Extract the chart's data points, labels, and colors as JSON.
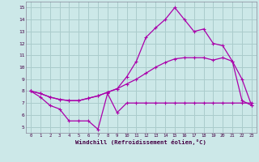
{
  "background_color": "#cce8e8",
  "grid_color": "#aacccc",
  "line_color": "#aa00aa",
  "xlim": [
    -0.5,
    23.5
  ],
  "ylim": [
    4.5,
    15.5
  ],
  "xticks": [
    0,
    1,
    2,
    3,
    4,
    5,
    6,
    7,
    8,
    9,
    10,
    11,
    12,
    13,
    14,
    15,
    16,
    17,
    18,
    19,
    20,
    21,
    22,
    23
  ],
  "yticks": [
    5,
    6,
    7,
    8,
    9,
    10,
    11,
    12,
    13,
    14,
    15
  ],
  "xlabel": "Windchill (Refroidissement éolien,°C)",
  "line1_x": [
    0,
    1,
    2,
    3,
    4,
    5,
    6,
    7,
    8,
    9,
    10,
    11,
    12,
    13,
    14,
    15,
    16,
    17,
    18,
    19,
    20,
    21,
    22,
    23
  ],
  "line1_y": [
    8.0,
    7.5,
    6.8,
    6.5,
    5.5,
    5.5,
    5.5,
    4.8,
    7.8,
    6.2,
    7.0,
    7.0,
    7.0,
    7.0,
    7.0,
    7.0,
    7.0,
    7.0,
    7.0,
    7.0,
    7.0,
    7.0,
    7.0,
    7.0
  ],
  "line2_x": [
    0,
    1,
    2,
    3,
    4,
    5,
    6,
    7,
    8,
    9,
    10,
    11,
    12,
    13,
    14,
    15,
    16,
    17,
    18,
    19,
    20,
    21,
    22,
    23
  ],
  "line2_y": [
    8.0,
    7.8,
    7.5,
    7.3,
    7.2,
    7.2,
    7.4,
    7.6,
    7.9,
    8.2,
    8.6,
    9.0,
    9.5,
    10.0,
    10.4,
    10.7,
    10.8,
    10.8,
    10.8,
    10.6,
    10.8,
    10.5,
    9.0,
    6.8
  ],
  "line3_x": [
    0,
    1,
    2,
    3,
    4,
    5,
    6,
    7,
    8,
    9,
    10,
    11,
    12,
    13,
    14,
    15,
    16,
    17,
    18,
    19,
    20,
    21,
    22,
    23
  ],
  "line3_y": [
    8.0,
    7.8,
    7.5,
    7.3,
    7.2,
    7.2,
    7.4,
    7.6,
    7.9,
    8.2,
    9.2,
    10.5,
    12.5,
    13.3,
    14.0,
    15.0,
    14.0,
    13.0,
    13.2,
    12.0,
    11.8,
    10.5,
    7.2,
    6.8
  ]
}
